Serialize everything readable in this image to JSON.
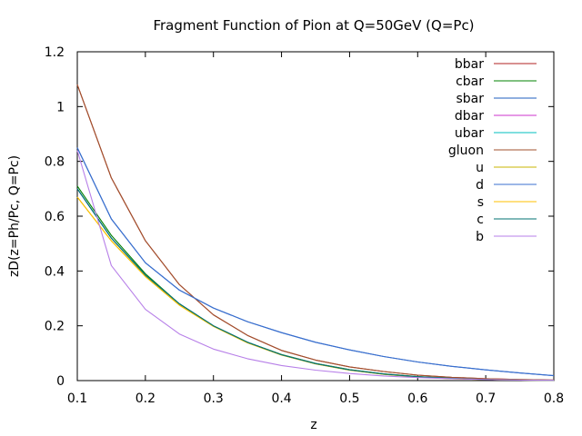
{
  "chart_data": {
    "type": "line",
    "title": "Fragment Function of Pion at Q=50GeV (Q=Pc)",
    "xlabel": "z",
    "ylabel": "zD(z=Ph/Pc, Q=Pc)",
    "xlim": [
      0.1,
      0.8
    ],
    "ylim": [
      0,
      1.2
    ],
    "x_ticks": [
      "0.1",
      "0.2",
      "0.3",
      "0.4",
      "0.5",
      "0.6",
      "0.7",
      "0.8"
    ],
    "y_ticks": [
      "0",
      "0.2",
      "0.4",
      "0.6",
      "0.8",
      "1",
      "1.2"
    ],
    "grid": false,
    "legend_position": "top-right",
    "x": [
      0.1,
      0.15,
      0.2,
      0.25,
      0.3,
      0.35,
      0.4,
      0.45,
      0.5,
      0.55,
      0.6,
      0.65,
      0.7,
      0.75,
      0.8
    ],
    "series": [
      {
        "name": "bbar",
        "color": "#b22222",
        "values": [
          1.08,
          0.74,
          0.51,
          0.35,
          0.24,
          0.165,
          0.11,
          0.075,
          0.05,
          0.033,
          0.02,
          0.012,
          0.007,
          0.004,
          0.002
        ]
      },
      {
        "name": "cbar",
        "color": "#008000",
        "values": [
          0.71,
          0.53,
          0.39,
          0.28,
          0.2,
          0.14,
          0.095,
          0.063,
          0.04,
          0.025,
          0.015,
          0.009,
          0.005,
          0.003,
          0.001
        ]
      },
      {
        "name": "sbar",
        "color": "#1f5fbf",
        "values": [
          0.85,
          0.59,
          0.43,
          0.33,
          0.265,
          0.215,
          0.175,
          0.14,
          0.112,
          0.088,
          0.068,
          0.052,
          0.039,
          0.028,
          0.018
        ]
      },
      {
        "name": "dbar",
        "color": "#cc33cc",
        "values": [
          0.7,
          0.52,
          0.385,
          0.28,
          0.2,
          0.14,
          0.094,
          0.062,
          0.039,
          0.024,
          0.014,
          0.008,
          0.004,
          0.002,
          0.001
        ]
      },
      {
        "name": "ubar",
        "color": "#00bfbf",
        "values": [
          0.7,
          0.52,
          0.385,
          0.28,
          0.2,
          0.14,
          0.094,
          0.062,
          0.039,
          0.024,
          0.014,
          0.008,
          0.004,
          0.002,
          0.001
        ]
      },
      {
        "name": "gluon",
        "color": "#a0522d",
        "values": [
          1.08,
          0.74,
          0.51,
          0.35,
          0.24,
          0.165,
          0.11,
          0.075,
          0.05,
          0.033,
          0.02,
          0.012,
          0.007,
          0.004,
          0.002
        ]
      },
      {
        "name": "u",
        "color": "#c8b400",
        "values": [
          0.67,
          0.51,
          0.38,
          0.275,
          0.198,
          0.138,
          0.093,
          0.061,
          0.038,
          0.023,
          0.013,
          0.007,
          0.004,
          0.002,
          0.001
        ]
      },
      {
        "name": "d",
        "color": "#3a6fcf",
        "values": [
          0.85,
          0.59,
          0.43,
          0.33,
          0.265,
          0.215,
          0.175,
          0.14,
          0.112,
          0.088,
          0.068,
          0.052,
          0.039,
          0.028,
          0.018
        ]
      },
      {
        "name": "s",
        "color": "#ffc000",
        "values": [
          0.67,
          0.51,
          0.38,
          0.275,
          0.198,
          0.138,
          0.093,
          0.061,
          0.038,
          0.023,
          0.013,
          0.007,
          0.004,
          0.002,
          0.001
        ]
      },
      {
        "name": "c",
        "color": "#007070",
        "values": [
          0.7,
          0.52,
          0.385,
          0.28,
          0.2,
          0.14,
          0.094,
          0.062,
          0.039,
          0.024,
          0.014,
          0.008,
          0.004,
          0.002,
          0.001
        ]
      },
      {
        "name": "b",
        "color": "#b77fe8",
        "values": [
          0.84,
          0.42,
          0.26,
          0.17,
          0.115,
          0.08,
          0.055,
          0.038,
          0.026,
          0.017,
          0.011,
          0.007,
          0.004,
          0.002,
          0.001
        ]
      }
    ]
  }
}
